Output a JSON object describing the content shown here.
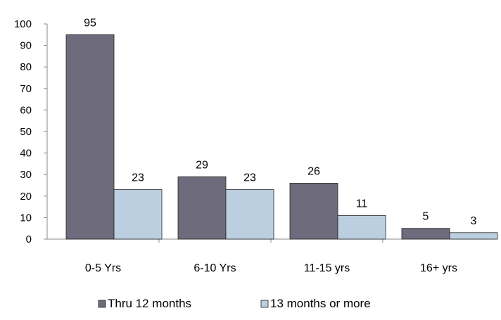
{
  "chart_data": {
    "type": "bar",
    "categories": [
      "0-5 Yrs",
      "6-10 Yrs",
      "11-15 yrs",
      "16+ yrs"
    ],
    "series": [
      {
        "name": "Thru 12 months",
        "values": [
          95,
          29,
          26,
          5
        ],
        "color": "#6e6c7c"
      },
      {
        "name": "13 months or more",
        "values": [
          23,
          23,
          11,
          3
        ],
        "color": "#bccfe0"
      }
    ],
    "ylim": [
      0,
      100
    ],
    "yticks": [
      0,
      10,
      20,
      30,
      40,
      50,
      60,
      70,
      80,
      90,
      100
    ],
    "grid": false,
    "legend_position": "bottom",
    "data_labels": true,
    "xlabel": "",
    "ylabel": ""
  }
}
